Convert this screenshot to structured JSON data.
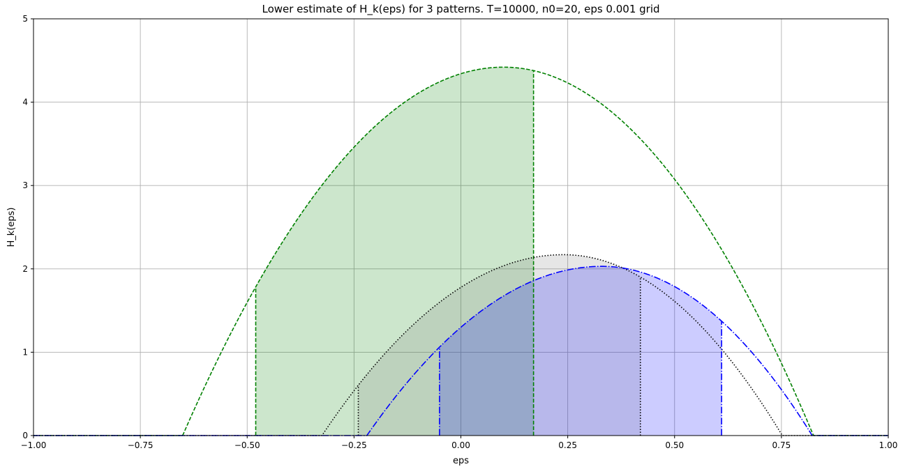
{
  "chart_data": {
    "type": "line",
    "title": "Lower estimate of H_k(eps) for 3 patterns. T=10000, n0=20, eps 0.001 grid",
    "xlabel": "eps",
    "ylabel": "H_k(eps)",
    "xlim": [
      -1.0,
      1.0
    ],
    "ylim": [
      0,
      5
    ],
    "xticks": [
      -1.0,
      -0.75,
      -0.5,
      -0.25,
      0.0,
      0.25,
      0.5,
      0.75,
      1.0
    ],
    "xtick_labels": [
      "−1.00",
      "−0.75",
      "−0.50",
      "−0.25",
      "0.00",
      "0.25",
      "0.50",
      "0.75",
      "1.00"
    ],
    "yticks": [
      0,
      1,
      2,
      3,
      4,
      5
    ],
    "ytick_labels": [
      "0",
      "1",
      "2",
      "3",
      "4",
      "5"
    ],
    "grid": true,
    "legend": "none",
    "series": [
      {
        "style": "dashed",
        "color": "#008000",
        "fill_color": "#008000",
        "root_left": -0.651,
        "peak": [
          0.1,
          4.42
        ],
        "root_right": 0.825,
        "fill_range": [
          -0.48,
          0.17
        ]
      },
      {
        "style": "dotted",
        "color": "#000000",
        "fill_color": "#808080",
        "root_left": -0.325,
        "peak": [
          0.24,
          2.17
        ],
        "root_right": 0.752,
        "fill_range": [
          -0.24,
          0.42
        ]
      },
      {
        "style": "dashdot",
        "color": "#0000ff",
        "fill_color": "#0000ff",
        "root_left": -0.22,
        "peak": [
          0.33,
          2.03
        ],
        "root_right": 0.822,
        "fill_range": [
          -0.05,
          0.61
        ]
      }
    ]
  }
}
